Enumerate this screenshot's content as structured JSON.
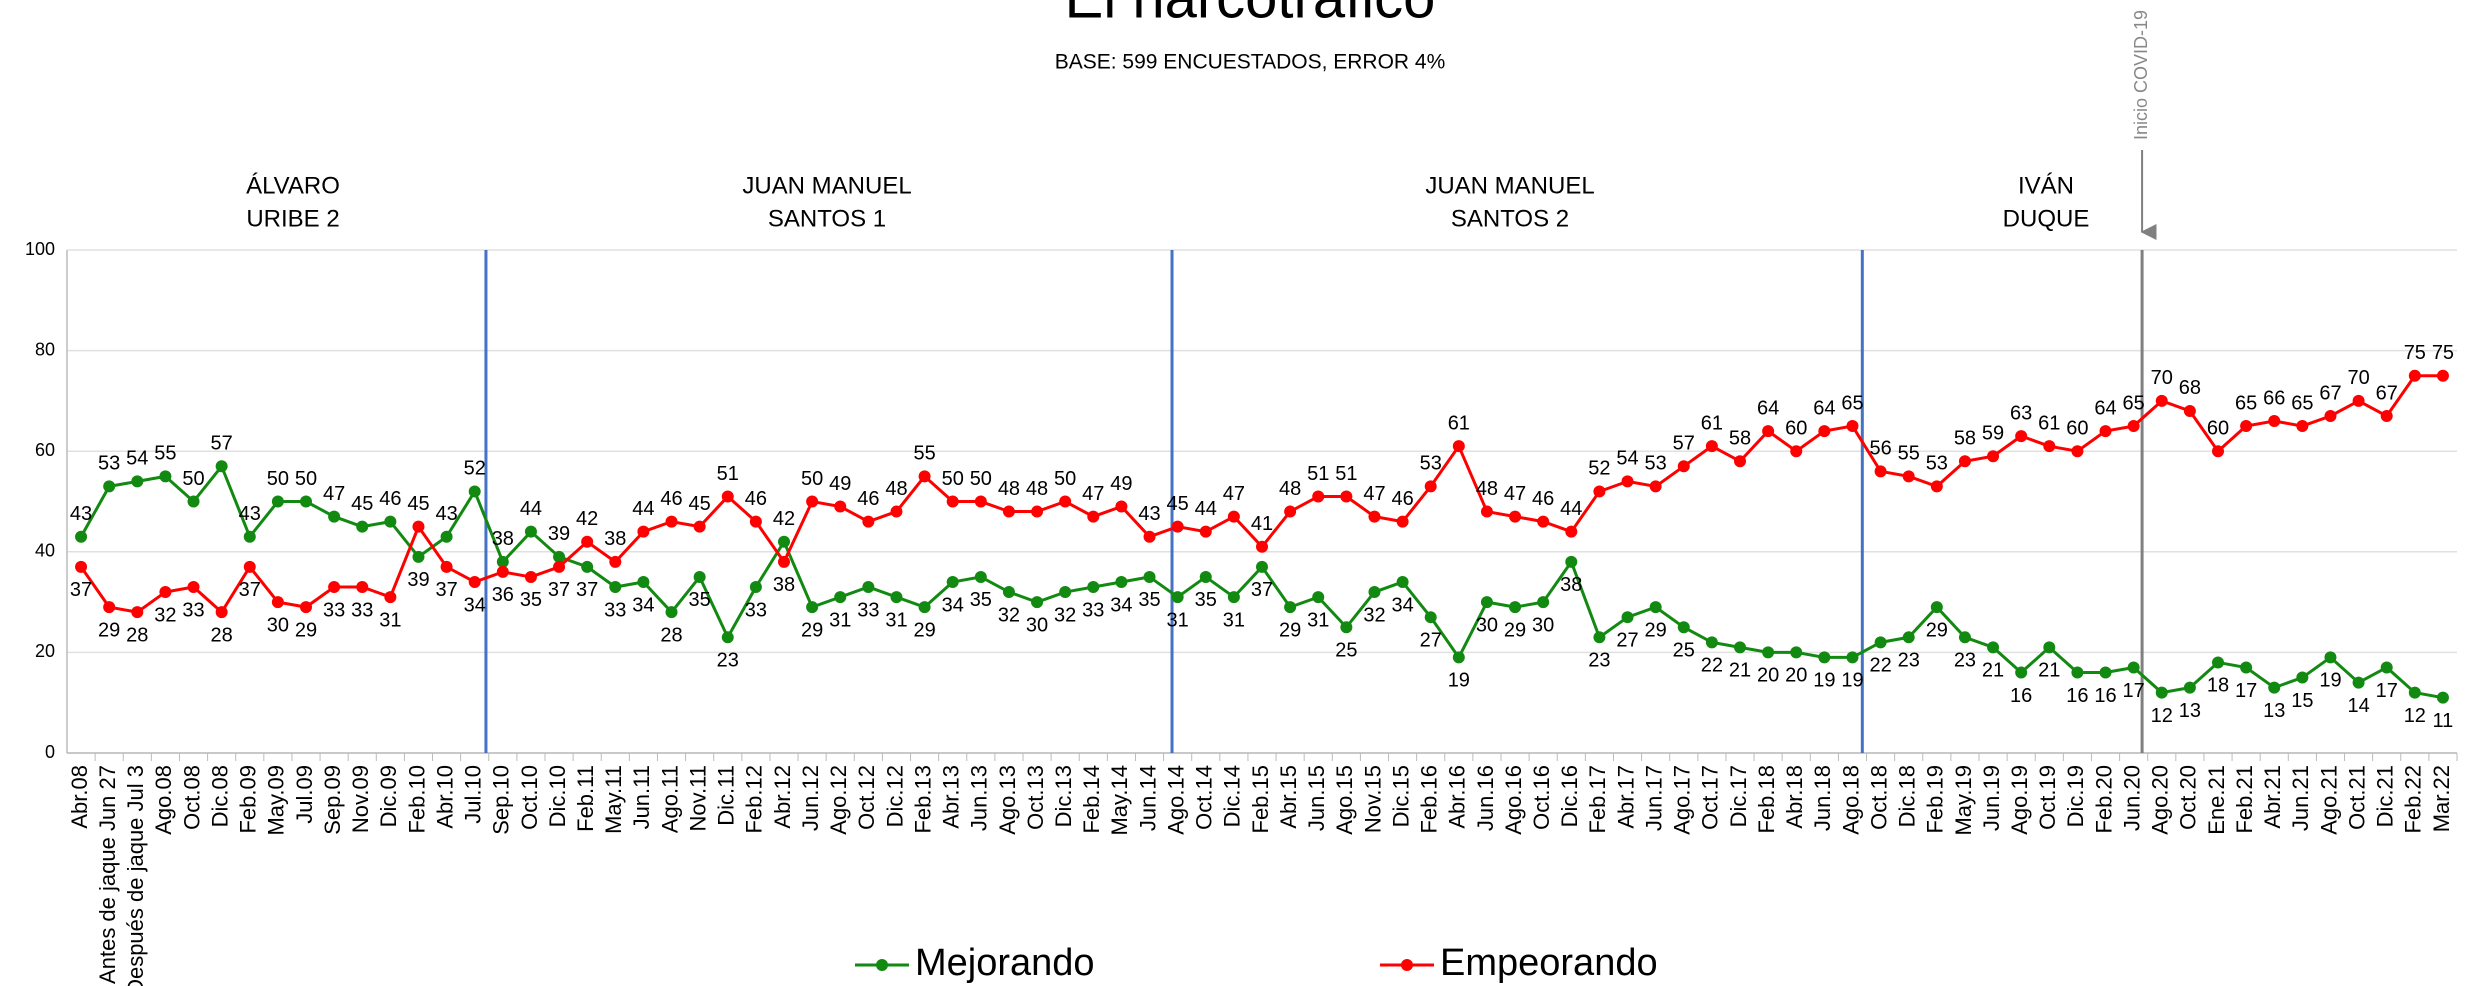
{
  "chart_data": {
    "type": "line",
    "title": "El narcotráfico",
    "subtitle": "BASE: 599 ENCUESTADOS, ERROR 4%",
    "periods": [
      [
        "ÁLVARO",
        "URIBE 2"
      ],
      [
        "JUAN MANUEL",
        "SANTOS 1"
      ],
      [
        "JUAN MANUEL",
        "SANTOS 2"
      ],
      [
        "IVÁN",
        "DUQUE"
      ]
    ],
    "annotation": "Inicio COVID-19",
    "categories": [
      "Abr.08",
      "Antes de jaque Jun 27",
      "Después de jaque Jul 3",
      "Ago.08",
      "Oct.08",
      "Dic.08",
      "Feb.09",
      "May.09",
      "Jul.09",
      "Sep.09",
      "Nov.09",
      "Dic.09",
      "Feb.10",
      "Abr.10",
      "Jul.10",
      "Sep.10",
      "Oct.10",
      "Dic.10",
      "Feb.11",
      "May.11",
      "Jun.11",
      "Ago.11",
      "Nov.11",
      "Dic.11",
      "Feb.12",
      "Abr.12",
      "Jun.12",
      "Ago.12",
      "Oct.12",
      "Dic.12",
      "Feb.13",
      "Abr.13",
      "Jun.13",
      "Ago.13",
      "Oct.13",
      "Dic.13",
      "Feb.14",
      "May.14",
      "Jun.14",
      "Ago.14",
      "Oct.14",
      "Dic.14",
      "Feb.15",
      "Abr.15",
      "Jun.15",
      "Ago.15",
      "Nov.15",
      "Dic.15",
      "Feb.16",
      "Abr.16",
      "Jun.16",
      "Ago.16",
      "Oct.16",
      "Dic.16",
      "Feb.17",
      "Abr.17",
      "Jun.17",
      "Ago.17",
      "Oct.17",
      "Dic.17",
      "Feb.18",
      "Abr.18",
      "Jun.18",
      "Ago.18",
      "Oct.18",
      "Dic.18",
      "Feb.19",
      "May.19",
      "Jun.19",
      "Ago.19",
      "Oct.19",
      "Dic.19",
      "Feb.20",
      "Jun.20",
      "Ago.20",
      "Oct.20",
      "Ene.21",
      "Feb.21",
      "Abr.21",
      "Jun.21",
      "Ago.21",
      "Oct.21",
      "Dic.21",
      "Feb.22",
      "Mar.22"
    ],
    "series": [
      {
        "name": "Mejorando",
        "color": "#128a12",
        "values": [
          43,
          53,
          54,
          55,
          50,
          57,
          43,
          50,
          50,
          47,
          45,
          46,
          39,
          43,
          52,
          38,
          44,
          39,
          37,
          33,
          34,
          28,
          35,
          23,
          33,
          42,
          29,
          31,
          33,
          31,
          29,
          34,
          35,
          32,
          30,
          32,
          33,
          34,
          35,
          31,
          35,
          31,
          37,
          29,
          31,
          25,
          32,
          34,
          27,
          19,
          30,
          29,
          30,
          38,
          23,
          27,
          29,
          25,
          22,
          21,
          20,
          20,
          19,
          19,
          22,
          23,
          29,
          23,
          21,
          16,
          21,
          16,
          16,
          17,
          12,
          13,
          18,
          17,
          13,
          15,
          19,
          14,
          17,
          12,
          11
        ]
      },
      {
        "name": "Empeorando",
        "color": "#ff0000",
        "values": [
          37,
          29,
          28,
          32,
          33,
          28,
          37,
          30,
          29,
          33,
          33,
          31,
          45,
          37,
          34,
          36,
          35,
          37,
          42,
          38,
          44,
          46,
          45,
          51,
          46,
          38,
          50,
          49,
          46,
          48,
          55,
          50,
          50,
          48,
          48,
          50,
          47,
          49,
          43,
          45,
          44,
          47,
          41,
          48,
          51,
          51,
          47,
          46,
          53,
          61,
          48,
          47,
          46,
          44,
          52,
          54,
          53,
          57,
          61,
          58,
          64,
          60,
          64,
          65,
          56,
          55,
          53,
          58,
          59,
          63,
          61,
          60,
          64,
          65,
          70,
          68,
          60,
          65,
          66,
          65,
          67,
          70,
          67,
          75,
          75
        ]
      }
    ],
    "ylim": [
      0,
      100
    ],
    "yticks": [
      0,
      20,
      40,
      60,
      80,
      100
    ],
    "grid": true
  }
}
